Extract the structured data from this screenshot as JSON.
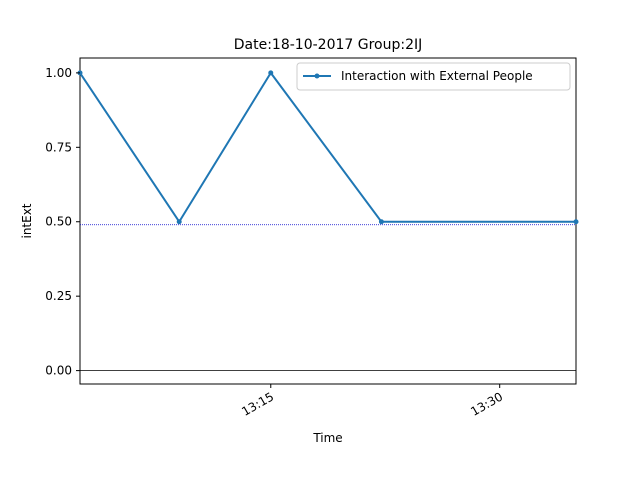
{
  "chart_data": {
    "type": "line",
    "title": "Date:18-10-2017  Group:2IJ",
    "xlabel": "Time",
    "ylabel": "intExt",
    "x_unit": "time of day (HH:MM:SS)",
    "xlim": [
      "13:02:30",
      "13:35:00"
    ],
    "ylim": [
      -0.045,
      1.05
    ],
    "x_ticks": [
      {
        "value": "13:15:00",
        "label": "13:15"
      },
      {
        "value": "13:30:00",
        "label": "13:30"
      }
    ],
    "y_ticks": [
      {
        "value": 0.0,
        "label": "0.00"
      },
      {
        "value": 0.25,
        "label": "0.25"
      },
      {
        "value": 0.5,
        "label": "0.50"
      },
      {
        "value": 0.75,
        "label": "0.75"
      },
      {
        "value": 1.0,
        "label": "1.00"
      }
    ],
    "grid": false,
    "legend_position": "upper right",
    "series": [
      {
        "name": "Interaction with External People",
        "color": "#1f77b4",
        "marker": "point",
        "x": [
          "13:02:30",
          "13:09:00",
          "13:15:00",
          "13:22:15",
          "13:35:00"
        ],
        "y": [
          1.0,
          0.5,
          1.0,
          0.5,
          0.5
        ]
      }
    ],
    "reference_lines": [
      {
        "y": 0.49,
        "style": "dotted",
        "color": "#0000cc"
      },
      {
        "y": 0.0,
        "style": "solid",
        "color": "#000000"
      }
    ]
  }
}
